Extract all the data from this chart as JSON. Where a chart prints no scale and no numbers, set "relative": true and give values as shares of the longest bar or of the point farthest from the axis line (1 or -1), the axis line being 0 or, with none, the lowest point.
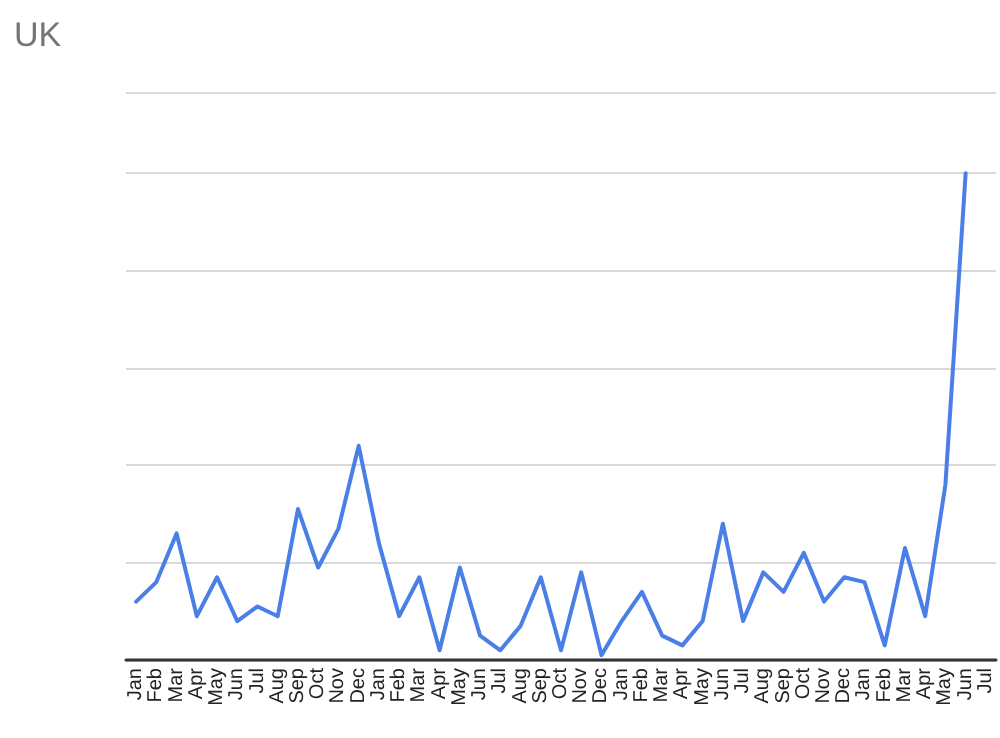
{
  "chart_data": {
    "type": "line",
    "title": "UK",
    "relative": true,
    "grid": "y",
    "marker": "none",
    "line_style": "solid",
    "categories": [
      "Jan",
      "Feb",
      "Mar",
      "Apr",
      "May",
      "Jun",
      "Jul",
      "Aug",
      "Sep",
      "Oct",
      "Nov",
      "Dec",
      "Jan",
      "Feb",
      "Mar",
      "Apr",
      "May",
      "Jun",
      "Jul",
      "Aug",
      "Sep",
      "Oct",
      "Nov",
      "Dec",
      "Jan",
      "Feb",
      "Mar",
      "Apr",
      "May",
      "Jun",
      "Jul",
      "Aug",
      "Sep",
      "Oct",
      "Nov",
      "Dec",
      "Jan",
      "Feb",
      "Mar",
      "Apr",
      "May",
      "Jun",
      "Jul"
    ],
    "series": [
      {
        "color": "#4a7fe8",
        "values": [
          0.12,
          0.16,
          0.26,
          0.09,
          0.17,
          0.08,
          0.11,
          0.09,
          0.31,
          0.19,
          0.27,
          0.44,
          0.24,
          0.09,
          0.17,
          0.02,
          0.19,
          0.05,
          0.02,
          0.07,
          0.17,
          0.02,
          0.18,
          0.01,
          0.08,
          0.14,
          0.05,
          0.03,
          0.08,
          0.28,
          0.08,
          0.18,
          0.14,
          0.22,
          0.12,
          0.17,
          0.16,
          0.03,
          0.23,
          0.09,
          0.36,
          1,
          null
        ]
      }
    ]
  }
}
